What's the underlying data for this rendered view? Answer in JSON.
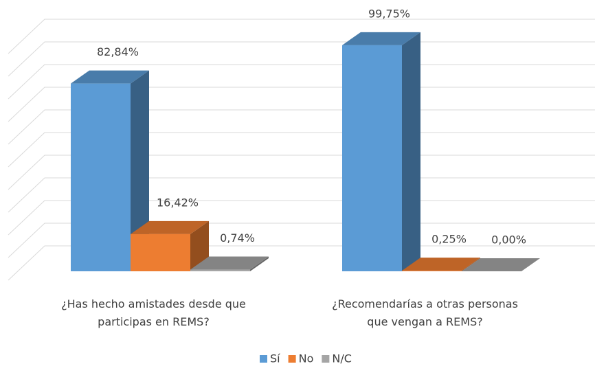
{
  "chart_data": {
    "type": "bar3d",
    "categories": [
      "¿Has hecho amistades desde que\nparticipas en REMS?",
      "¿Recomendarías a otras personas\nque vengan a REMS?"
    ],
    "series": [
      {
        "name": "Sí",
        "color": "#5b9bd5",
        "values": [
          82.84,
          99.75
        ],
        "value_labels": [
          "82,84%",
          "99,75%"
        ]
      },
      {
        "name": "No",
        "color": "#ed7d31",
        "values": [
          16.42,
          0.25
        ],
        "value_labels": [
          "16,42%",
          "0,25%"
        ]
      },
      {
        "name": "N/C",
        "color": "#a5a5a5",
        "values": [
          0.74,
          0.0
        ],
        "value_labels": [
          "0,74%",
          "0,00%"
        ]
      }
    ],
    "ylim": [
      0,
      100
    ],
    "yticks": [
      0,
      10,
      20,
      30,
      40,
      50,
      60,
      70,
      80,
      90,
      100
    ],
    "grid": true,
    "legend": "bottom"
  }
}
